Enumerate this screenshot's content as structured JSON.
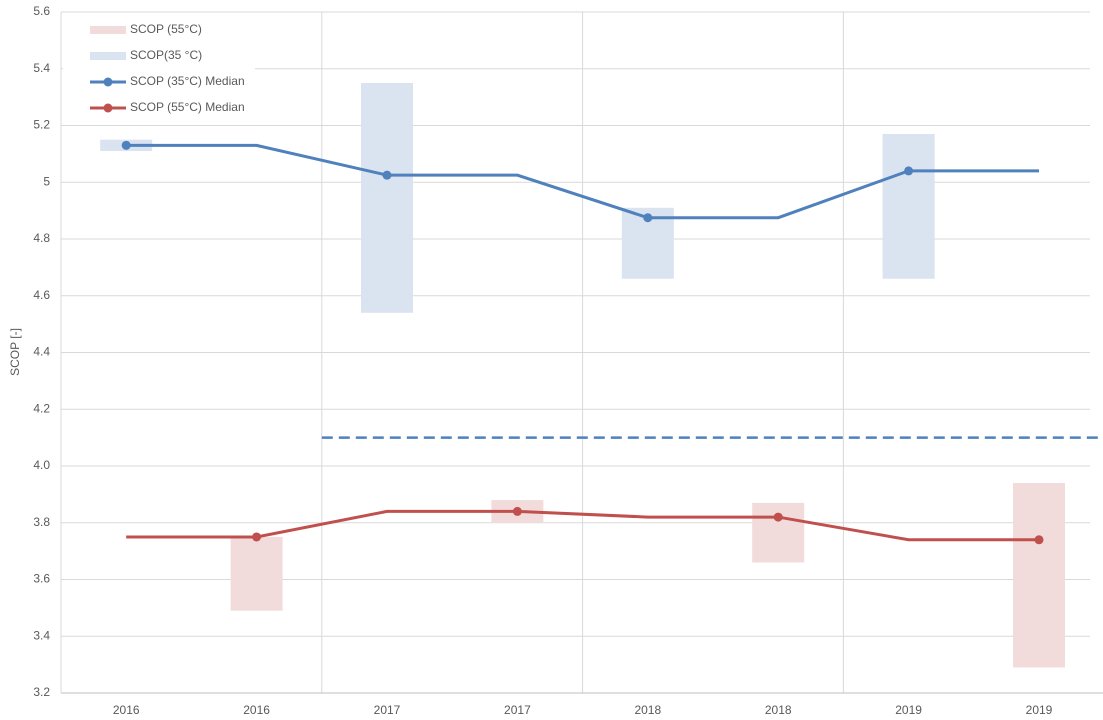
{
  "chart_data": {
    "type": "range-line",
    "y_axis_label": "SCOP [-]",
    "categories": [
      "2016",
      "2016",
      "2017",
      "2017",
      "2018",
      "2018",
      "2019",
      "2019"
    ],
    "ranges": [
      {
        "name": "SCOP (55°C)",
        "color": "#f2dcdb",
        "low": [
          null,
          3.49,
          null,
          3.8,
          null,
          3.66,
          null,
          3.29
        ],
        "high": [
          null,
          3.75,
          null,
          3.88,
          null,
          3.87,
          null,
          3.94
        ]
      },
      {
        "name": "SCOP(35 °C)",
        "color": "#dae3f0",
        "low": [
          5.11,
          null,
          4.54,
          null,
          4.66,
          null,
          4.66,
          null
        ],
        "high": [
          5.15,
          null,
          5.35,
          null,
          4.91,
          null,
          5.17,
          null
        ]
      }
    ],
    "series": [
      {
        "name": "SCOP (35°C) Median",
        "color": "#4f81bd",
        "values": [
          5.13,
          5.13,
          5.025,
          5.025,
          4.875,
          4.875,
          5.04,
          5.04
        ]
      },
      {
        "name": "SCOP (55°C) Median",
        "color": "#c0504d",
        "values": [
          3.75,
          3.75,
          3.84,
          3.84,
          3.82,
          3.82,
          3.74,
          3.74
        ]
      }
    ],
    "reference_line": {
      "value": 4.1,
      "color": "#4f81bd",
      "dashed": true
    },
    "ylim": [
      3.2,
      5.6
    ],
    "yticks": [
      3.2,
      3.4,
      3.6,
      3.8,
      {
        "value": 4.0,
        "label": "4.0"
      },
      4.2,
      4.4,
      4.6,
      4.8,
      5.0,
      5.2,
      5.4,
      5.6
    ],
    "grid": true,
    "legend": "top-left"
  }
}
